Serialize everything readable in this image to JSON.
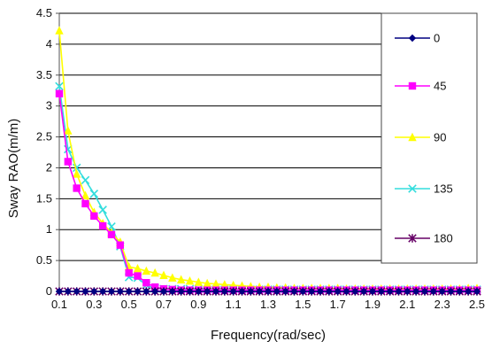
{
  "chart_data": {
    "type": "line",
    "xlabel": "Frequency(rad/sec)",
    "ylabel": "Sway RAO(m/m)",
    "ylim": [
      0,
      4.5
    ],
    "xlim": [
      0.1,
      2.5
    ],
    "yticks": [
      "0",
      "0.5",
      "1",
      "1.5",
      "2",
      "2.5",
      "3",
      "3.5",
      "4",
      "4.5"
    ],
    "xticks": [
      "0.1",
      "0.3",
      "0.5",
      "0.7",
      "0.9",
      "1.1",
      "1.3",
      "1.5",
      "1.7",
      "1.9",
      "2.1",
      "2.3",
      "2.5"
    ],
    "grid": "horizontal",
    "legend_position": "right",
    "series": [
      {
        "name": "0",
        "color": "#000080",
        "marker": "diamond",
        "x": [
          0.1,
          0.15,
          0.2,
          0.25,
          0.3,
          0.35,
          0.4,
          0.45,
          0.5,
          0.55,
          0.6,
          0.65,
          0.7,
          0.75,
          0.8,
          0.85,
          0.9,
          0.95,
          1.0,
          1.05,
          1.1,
          1.15,
          1.2,
          1.25,
          1.3,
          1.35,
          1.4,
          1.45,
          1.5,
          1.55,
          1.6,
          1.65,
          1.7,
          1.75,
          1.8,
          1.85,
          1.9,
          1.95,
          2.0,
          2.05,
          2.1,
          2.15,
          2.2,
          2.25,
          2.3,
          2.35,
          2.4,
          2.45,
          2.5
        ],
        "y": [
          0,
          0,
          0,
          0,
          0,
          0,
          0,
          0,
          0,
          0,
          0,
          0,
          0,
          0,
          0,
          0,
          0,
          0,
          0,
          0,
          0,
          0,
          0,
          0,
          0,
          0,
          0,
          0,
          0,
          0,
          0,
          0,
          0,
          0,
          0,
          0,
          0,
          0,
          0,
          0,
          0,
          0,
          0,
          0,
          0,
          0,
          0,
          0,
          0
        ]
      },
      {
        "name": "45",
        "color": "#ff00ff",
        "marker": "square",
        "x": [
          0.1,
          0.15,
          0.2,
          0.25,
          0.3,
          0.35,
          0.4,
          0.45,
          0.5,
          0.55,
          0.6,
          0.65,
          0.7,
          0.75,
          0.8,
          0.85,
          0.9,
          0.95,
          1.0,
          1.05,
          1.1,
          1.15,
          1.2,
          1.25,
          1.3,
          1.35,
          1.4,
          1.45,
          1.5,
          1.55,
          1.6,
          1.65,
          1.7,
          1.75,
          1.8,
          1.85,
          1.9,
          1.95,
          2.0,
          2.05,
          2.1,
          2.15,
          2.2,
          2.25,
          2.3,
          2.35,
          2.4,
          2.45,
          2.5
        ],
        "y": [
          3.2,
          2.1,
          1.67,
          1.42,
          1.22,
          1.06,
          0.92,
          0.75,
          0.3,
          0.25,
          0.14,
          0.07,
          0.04,
          0.03,
          0.02,
          0.02,
          0.02,
          0.02,
          0.02,
          0.02,
          0.02,
          0.02,
          0.02,
          0.02,
          0.02,
          0.02,
          0.02,
          0.02,
          0.02,
          0.02,
          0.02,
          0.02,
          0.02,
          0.02,
          0.02,
          0.02,
          0.02,
          0.02,
          0.02,
          0.02,
          0.02,
          0.02,
          0.02,
          0.02,
          0.02,
          0.02,
          0.02,
          0.02,
          0.02
        ]
      },
      {
        "name": "90",
        "color": "#ffff00",
        "marker": "triangle",
        "x": [
          0.1,
          0.15,
          0.2,
          0.25,
          0.3,
          0.35,
          0.4,
          0.45,
          0.5,
          0.55,
          0.6,
          0.65,
          0.7,
          0.75,
          0.8,
          0.85,
          0.9,
          0.95,
          1.0,
          1.05,
          1.1,
          1.15,
          1.2,
          1.25,
          1.3,
          1.35,
          1.4,
          1.45,
          1.5,
          1.55,
          1.6,
          1.65,
          1.7,
          1.75,
          1.8,
          1.85,
          1.9,
          1.95,
          2.0,
          2.05,
          2.1,
          2.15,
          2.2,
          2.25,
          2.3,
          2.35,
          2.4,
          2.45,
          2.5
        ],
        "y": [
          4.22,
          2.6,
          1.9,
          1.55,
          1.28,
          1.1,
          0.95,
          0.8,
          0.4,
          0.37,
          0.33,
          0.3,
          0.26,
          0.22,
          0.19,
          0.17,
          0.15,
          0.13,
          0.12,
          0.11,
          0.1,
          0.09,
          0.08,
          0.07,
          0.07,
          0.06,
          0.06,
          0.05,
          0.05,
          0.05,
          0.05,
          0.05,
          0.05,
          0.04,
          0.04,
          0.04,
          0.04,
          0.04,
          0.04,
          0.04,
          0.04,
          0.04,
          0.04,
          0.04,
          0.04,
          0.04,
          0.04,
          0.05,
          0.05
        ]
      },
      {
        "name": "135",
        "color": "#33dddd",
        "marker": "x",
        "x": [
          0.1,
          0.15,
          0.2,
          0.25,
          0.3,
          0.35,
          0.4,
          0.45,
          0.5,
          0.55,
          0.6,
          0.65,
          0.7,
          0.75,
          0.8,
          0.85,
          0.9,
          0.95,
          1.0,
          1.05,
          1.1,
          1.15,
          1.2,
          1.25,
          1.3,
          1.35,
          1.4,
          1.45,
          1.5,
          1.55,
          1.6,
          1.65,
          1.7,
          1.75,
          1.8,
          1.85,
          1.9,
          1.95,
          2.0,
          2.05,
          2.1,
          2.15,
          2.2,
          2.25,
          2.3,
          2.35,
          2.4,
          2.45,
          2.5
        ],
        "y": [
          3.32,
          2.3,
          2.0,
          1.8,
          1.58,
          1.32,
          1.05,
          0.73,
          0.23,
          0.22,
          0.1,
          0.05,
          0.04,
          0.04,
          0.04,
          0.04,
          0.04,
          0.03,
          0.03,
          0.03,
          0.03,
          0.03,
          0.03,
          0.03,
          0.03,
          0.03,
          0.03,
          0.03,
          0.03,
          0.03,
          0.03,
          0.03,
          0.03,
          0.03,
          0.03,
          0.03,
          0.03,
          0.03,
          0.03,
          0.03,
          0.03,
          0.03,
          0.03,
          0.03,
          0.03,
          0.03,
          0.03,
          0.03,
          0.03
        ]
      },
      {
        "name": "180",
        "color": "#660066",
        "marker": "asterisk",
        "x": [
          0.1,
          0.15,
          0.2,
          0.25,
          0.3,
          0.35,
          0.4,
          0.45,
          0.5,
          0.55,
          0.6,
          0.65,
          0.7,
          0.75,
          0.8,
          0.85,
          0.9,
          0.95,
          1.0,
          1.05,
          1.1,
          1.15,
          1.2,
          1.25,
          1.3,
          1.35,
          1.4,
          1.45,
          1.5,
          1.55,
          1.6,
          1.65,
          1.7,
          1.75,
          1.8,
          1.85,
          1.9,
          1.95,
          2.0,
          2.05,
          2.1,
          2.15,
          2.2,
          2.25,
          2.3,
          2.35,
          2.4,
          2.45,
          2.5
        ],
        "y": [
          0,
          0,
          0,
          0,
          0,
          0,
          0,
          0,
          0,
          0,
          0,
          0,
          0,
          0,
          0,
          0,
          0,
          0,
          0,
          0,
          0,
          0,
          0,
          0,
          0,
          0,
          0,
          0,
          0,
          0,
          0,
          0,
          0,
          0,
          0,
          0,
          0,
          0,
          0,
          0,
          0,
          0,
          0,
          0,
          0,
          0,
          0,
          0,
          0
        ]
      }
    ]
  }
}
